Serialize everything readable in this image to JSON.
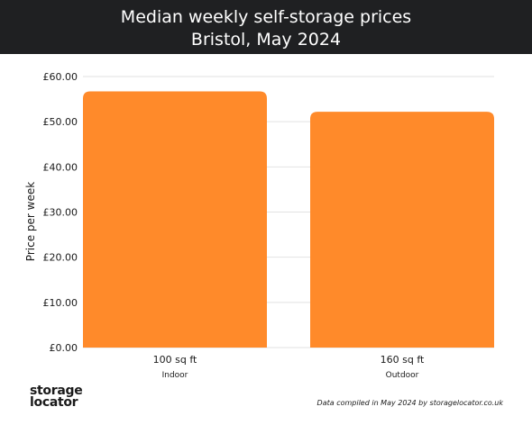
{
  "chart_data": {
    "type": "bar",
    "title": "Median weekly self-storage prices",
    "subtitle": "Bristol, May 2024",
    "ylabel": "Price per week",
    "xlabel": "",
    "ylim": [
      0,
      60
    ],
    "yticks": [
      {
        "value": 0,
        "label": "£0.00"
      },
      {
        "value": 10,
        "label": "£10.00"
      },
      {
        "value": 20,
        "label": "£20.00"
      },
      {
        "value": 30,
        "label": "£30.00"
      },
      {
        "value": 40,
        "label": "£40.00"
      },
      {
        "value": 50,
        "label": "£50.00"
      },
      {
        "value": 60,
        "label": "£60.00"
      }
    ],
    "categories": [
      "100 sq ft",
      "160 sq ft"
    ],
    "category_sublabels": [
      "Indoor",
      "Outdoor"
    ],
    "values": [
      56.7,
      52.2
    ],
    "bar_color": "#ff8a2a",
    "grid": true,
    "legend": "none"
  },
  "footer": {
    "logo_line1": "storage",
    "logo_line2": "locator",
    "source": "Data compiled in May 2024 by storagelocator.co.uk"
  }
}
